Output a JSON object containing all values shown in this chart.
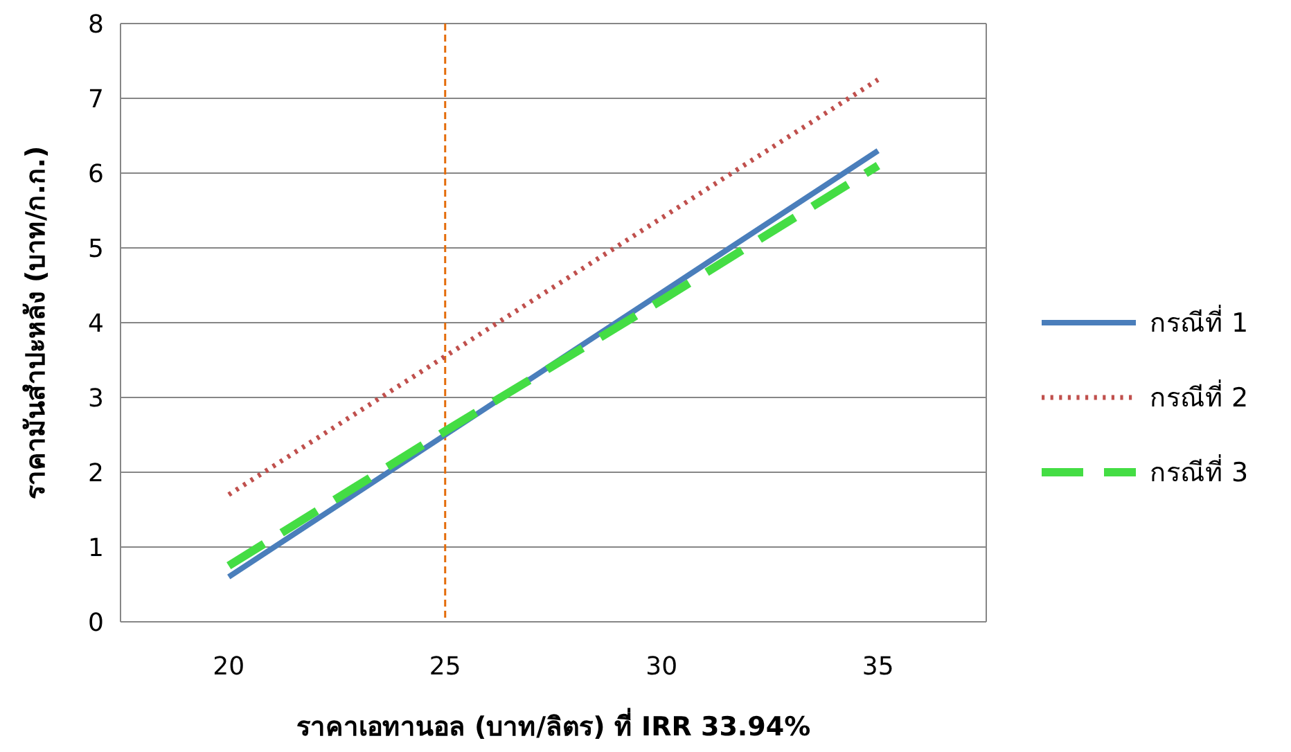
{
  "chart_data": {
    "type": "line",
    "xlabel": "ราคาเอทานอล (บาท/ลิตร) ที่ IRR 33.94%",
    "ylabel": "ราคามันสำปะหลัง (บาท/ก.ก.)",
    "x": [
      20,
      25,
      30,
      35
    ],
    "series": [
      {
        "name": "กรณีที่ 1",
        "color": "#4a7ebb",
        "line_style": "solid",
        "values": [
          0.6,
          2.5,
          4.4,
          6.3
        ]
      },
      {
        "name": "กรณีที่ 2",
        "color": "#c0504d",
        "line_style": "dotted",
        "values": [
          1.7,
          3.55,
          5.4,
          7.25
        ]
      },
      {
        "name": "กรณีที่ 3",
        "color": "#44dd44",
        "line_style": "dashed",
        "values": [
          0.75,
          2.55,
          4.3,
          6.1
        ]
      }
    ],
    "xlim": [
      17.5,
      37.5
    ],
    "xticks": [
      20,
      25,
      30,
      35
    ],
    "ylim": [
      0,
      8
    ],
    "yticks": [
      0,
      1,
      2,
      3,
      4,
      5,
      6,
      7,
      8
    ],
    "ref_lines": [
      {
        "axis": "x",
        "value": 25,
        "color": "#e46c0a",
        "line_style": "dashed"
      }
    ],
    "grid": "y",
    "legend": "right",
    "marker": "none"
  }
}
